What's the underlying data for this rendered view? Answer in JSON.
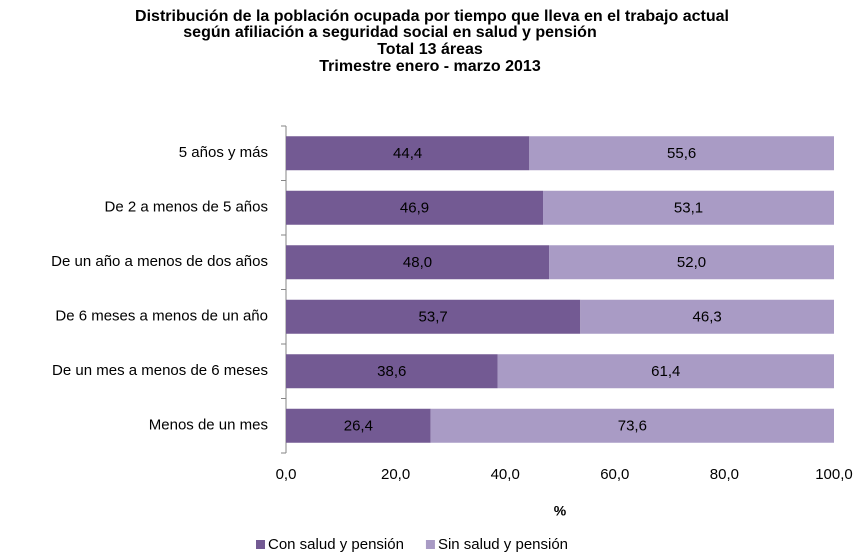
{
  "chart_data": {
    "type": "bar",
    "orientation": "horizontal",
    "stacked": true,
    "title": [
      "Distribución de la población ocupada por tiempo que lleva en el trabajo actual",
      "según afiliación a seguridad social en salud y pensión",
      "Total 13 áreas",
      "Trimestre enero - marzo 2013"
    ],
    "x_label": "%",
    "categories": [
      "5 años y más",
      "De 2 a menos de 5 años",
      "De un año a menos de dos años",
      "De 6 meses a menos de un año",
      "De un mes a menos de 6 meses",
      "Menos de un mes"
    ],
    "series": [
      {
        "name": "Con salud y pensión",
        "color": "#735a93",
        "values": [
          44.4,
          46.9,
          48.0,
          53.7,
          38.6,
          26.4
        ],
        "value_labels": [
          "44,4",
          "46,9",
          "48,0",
          "53,7",
          "38,6",
          "26,4"
        ]
      },
      {
        "name": "Sin salud y pensión",
        "color": "#a99bc5",
        "values": [
          55.6,
          53.1,
          52.0,
          46.3,
          61.4,
          73.6
        ],
        "value_labels": [
          "55,6",
          "53,1",
          "52,0",
          "46,3",
          "61,4",
          "73,6"
        ]
      }
    ],
    "xlim": [
      0,
      100
    ],
    "xticks": [
      {
        "value": 0,
        "label": "0,0"
      },
      {
        "value": 20,
        "label": "20,0"
      },
      {
        "value": 40,
        "label": "40,0"
      },
      {
        "value": 60,
        "label": "60,0"
      },
      {
        "value": 80,
        "label": "80,0"
      },
      {
        "value": 100,
        "label": "100,0"
      }
    ],
    "legend": "bottom"
  }
}
